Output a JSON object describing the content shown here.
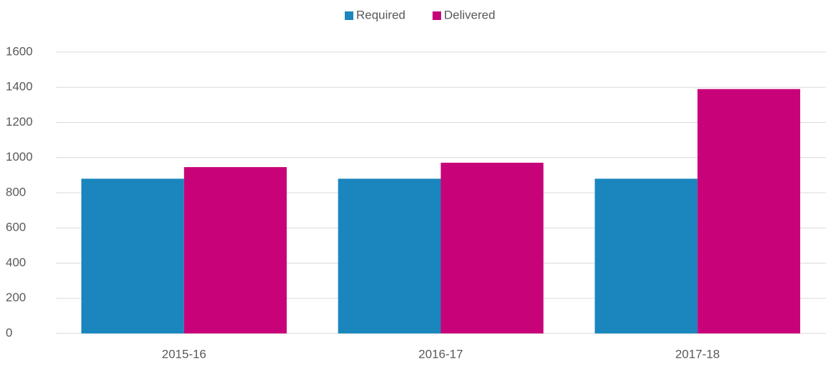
{
  "chart_data": {
    "type": "bar",
    "categories": [
      "2015-16",
      "2016-17",
      "2017-18"
    ],
    "series": [
      {
        "name": "Required",
        "color": "#1a86bd",
        "values": [
          880,
          880,
          880
        ]
      },
      {
        "name": "Delivered",
        "color": "#c8037a",
        "values": [
          946,
          971,
          1390
        ]
      }
    ],
    "ylim": [
      0,
      1600
    ],
    "yticks": [
      0,
      200,
      400,
      600,
      800,
      1000,
      1200,
      1400,
      1600
    ],
    "grid": true,
    "legend": "top"
  }
}
